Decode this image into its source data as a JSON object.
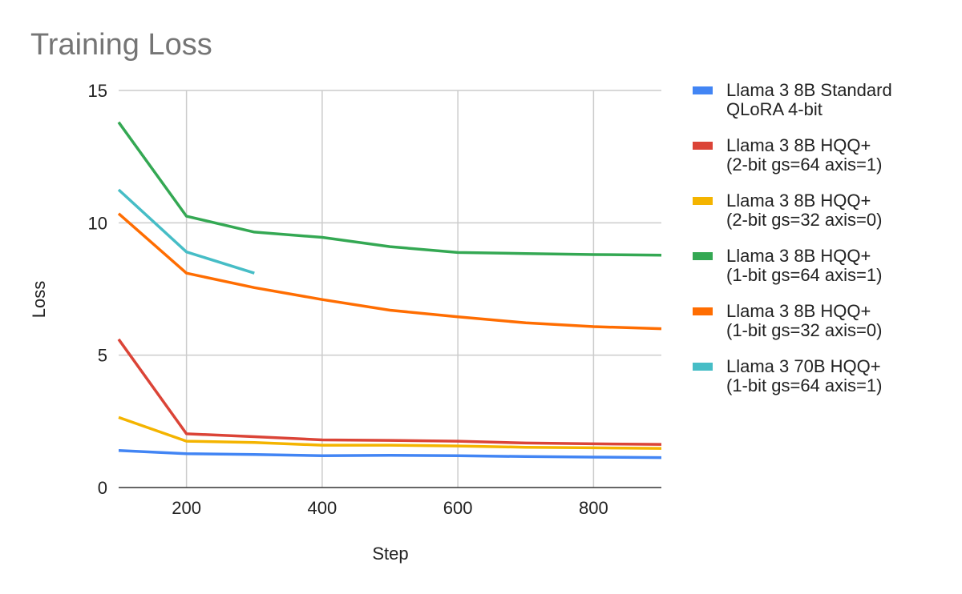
{
  "chart_data": {
    "type": "line",
    "title": "Training Loss",
    "xlabel": "Step",
    "ylabel": "Loss",
    "xlim": [
      100,
      900
    ],
    "ylim": [
      0,
      15
    ],
    "x_ticks": [
      200,
      400,
      600,
      800
    ],
    "y_ticks": [
      0,
      5,
      10,
      15
    ],
    "grid": true,
    "legend_position": "right",
    "series": [
      {
        "name_lines": [
          "Llama 3 8B Standard",
          "QLoRA 4-bit"
        ],
        "color": "#4285f4",
        "x": [
          100,
          200,
          300,
          400,
          500,
          600,
          700,
          800,
          900
        ],
        "y": [
          1.4,
          1.28,
          1.25,
          1.2,
          1.22,
          1.2,
          1.17,
          1.15,
          1.13
        ]
      },
      {
        "name_lines": [
          "Llama 3 8B HQQ+",
          "(2-bit gs=64 axis=1)"
        ],
        "color": "#db4437",
        "x": [
          100,
          200,
          300,
          400,
          500,
          600,
          700,
          800,
          900
        ],
        "y": [
          5.6,
          2.03,
          1.92,
          1.8,
          1.78,
          1.75,
          1.68,
          1.65,
          1.63
        ]
      },
      {
        "name_lines": [
          "Llama 3 8B HQQ+",
          "(2-bit gs=32 axis=0)"
        ],
        "color": "#f4b400",
        "x": [
          100,
          200,
          300,
          400,
          500,
          600,
          700,
          800,
          900
        ],
        "y": [
          2.65,
          1.75,
          1.7,
          1.6,
          1.6,
          1.57,
          1.52,
          1.5,
          1.48
        ]
      },
      {
        "name_lines": [
          "Llama 3 8B HQQ+",
          "(1-bit gs=64 axis=1)"
        ],
        "color": "#34a853",
        "x": [
          100,
          200,
          300,
          400,
          500,
          600,
          700,
          800,
          900
        ],
        "y": [
          13.8,
          10.25,
          9.65,
          9.45,
          9.1,
          8.88,
          8.84,
          8.8,
          8.78
        ]
      },
      {
        "name_lines": [
          "Llama 3 8B HQQ+",
          "(1-bit gs=32 axis=0)"
        ],
        "color": "#ff6d01",
        "x": [
          100,
          200,
          300,
          400,
          500,
          600,
          700,
          800,
          900
        ],
        "y": [
          10.35,
          8.1,
          7.55,
          7.1,
          6.7,
          6.45,
          6.22,
          6.08,
          6.0
        ]
      },
      {
        "name_lines": [
          "Llama 3 70B HQQ+",
          "(1-bit gs=64 axis=1)"
        ],
        "color": "#46bdc6",
        "x": [
          100,
          200,
          300
        ],
        "y": [
          11.25,
          8.9,
          8.1
        ]
      }
    ]
  }
}
